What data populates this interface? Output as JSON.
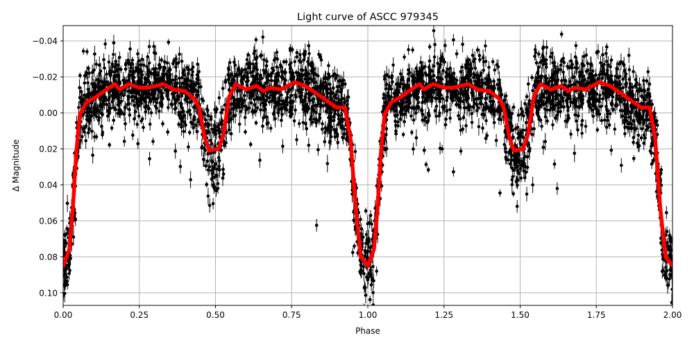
{
  "figure": {
    "title": "Light curve of ASCC 979345",
    "xlabel": "Phase",
    "ylabel": "Δ Magnitude"
  },
  "colors": {
    "data_points": "#000000",
    "model_curve": "#ff0000",
    "grid": "#b0b0b0",
    "axes": "#000000",
    "background": "#ffffff"
  },
  "chart_data": {
    "type": "scatter",
    "title": "Light curve of ASCC 979345",
    "xlabel": "Phase",
    "ylabel": "Δ Magnitude",
    "xlim": [
      0.0,
      2.0
    ],
    "ylim": [
      0.107,
      -0.0485
    ],
    "y_inverted": true,
    "grid": true,
    "legend": null,
    "xticks": [
      0.0,
      0.25,
      0.5,
      0.75,
      1.0,
      1.25,
      1.5,
      1.75,
      2.0
    ],
    "xtick_labels": [
      "0.00",
      "0.25",
      "0.50",
      "0.75",
      "1.00",
      "1.25",
      "1.50",
      "1.75",
      "2.00"
    ],
    "yticks": [
      -0.04,
      -0.02,
      0.0,
      0.02,
      0.04,
      0.06,
      0.08,
      0.1
    ],
    "ytick_labels": [
      "−0.04",
      "−0.02",
      "0.00",
      "0.02",
      "0.04",
      "0.06",
      "0.08",
      "0.10"
    ],
    "series": [
      {
        "name": "observations",
        "style": "black points with error bars (dense scatter)",
        "color": "#000000",
        "description": "Dense photometric measurements scattered roughly ±0.02 mag about the model curve, with outliers reaching ~0.07 mag; repeated over two phase cycles",
        "envelope_upper": {
          "phase": [
            0.0,
            0.04,
            0.06,
            0.1,
            0.2,
            0.3,
            0.4,
            0.45,
            0.47,
            0.53,
            0.55,
            0.6,
            0.7,
            0.8,
            0.9,
            0.94,
            0.96,
            1.0
          ],
          "mag": [
            0.06,
            0.02,
            -0.035,
            -0.045,
            -0.045,
            -0.04,
            -0.035,
            -0.03,
            -0.005,
            -0.005,
            -0.04,
            -0.04,
            -0.04,
            -0.045,
            -0.035,
            -0.025,
            0.02,
            0.07
          ]
        },
        "envelope_lower": {
          "phase": [
            0.0,
            0.04,
            0.06,
            0.1,
            0.2,
            0.3,
            0.4,
            0.45,
            0.47,
            0.53,
            0.55,
            0.6,
            0.7,
            0.8,
            0.9,
            0.94,
            0.96,
            1.0
          ],
          "mag": [
            0.107,
            0.1,
            0.06,
            0.025,
            0.015,
            0.02,
            0.015,
            0.02,
            0.045,
            0.045,
            0.03,
            0.015,
            0.02,
            0.025,
            0.02,
            0.03,
            0.08,
            0.107
          ]
        }
      },
      {
        "name": "model",
        "style": "thick red line",
        "color": "#ff0000",
        "phase": [
          0.0,
          0.02,
          0.032,
          0.043,
          0.055,
          0.077,
          0.11,
          0.134,
          0.17,
          0.185,
          0.214,
          0.25,
          0.28,
          0.33,
          0.36,
          0.4,
          0.43,
          0.446,
          0.465,
          0.48,
          0.51,
          0.526,
          0.545,
          0.567,
          0.6,
          0.635,
          0.658,
          0.68,
          0.715,
          0.76,
          0.795,
          0.83,
          0.863,
          0.897,
          0.925,
          0.943,
          0.96,
          0.977,
          1.0,
          1.02,
          1.032,
          1.043,
          1.055,
          1.077,
          1.11,
          1.134,
          1.17,
          1.185,
          1.214,
          1.25,
          1.28,
          1.33,
          1.36,
          1.4,
          1.43,
          1.446,
          1.465,
          1.48,
          1.51,
          1.526,
          1.545,
          1.567,
          1.6,
          1.635,
          1.658,
          1.68,
          1.715,
          1.76,
          1.795,
          1.83,
          1.863,
          1.897,
          1.925,
          1.943,
          1.96,
          1.977,
          2.0
        ],
        "mag": [
          0.085,
          0.076,
          0.053,
          0.022,
          0.001,
          -0.006,
          -0.009,
          -0.012,
          -0.016,
          -0.013,
          -0.016,
          -0.014,
          -0.014,
          -0.016,
          -0.013,
          -0.012,
          -0.008,
          -0.003,
          0.014,
          0.021,
          0.02,
          0.012,
          -0.009,
          -0.016,
          -0.013,
          -0.015,
          -0.012,
          -0.014,
          -0.013,
          -0.017,
          -0.015,
          -0.011,
          -0.007,
          -0.003,
          -0.003,
          0.014,
          0.053,
          0.08,
          0.085,
          0.076,
          0.053,
          0.022,
          0.001,
          -0.006,
          -0.009,
          -0.012,
          -0.016,
          -0.013,
          -0.016,
          -0.014,
          -0.014,
          -0.016,
          -0.013,
          -0.012,
          -0.008,
          -0.003,
          0.014,
          0.021,
          0.02,
          0.012,
          -0.009,
          -0.016,
          -0.013,
          -0.015,
          -0.012,
          -0.014,
          -0.013,
          -0.017,
          -0.015,
          -0.011,
          -0.007,
          -0.003,
          -0.003,
          0.014,
          0.053,
          0.08,
          0.085
        ]
      }
    ],
    "annotations": {
      "primary_eclipse_phases": [
        0.0,
        1.0,
        2.0
      ],
      "primary_eclipse_depth": 0.085,
      "secondary_eclipse_phases": [
        0.5,
        1.5
      ],
      "secondary_eclipse_depth": 0.021
    }
  }
}
